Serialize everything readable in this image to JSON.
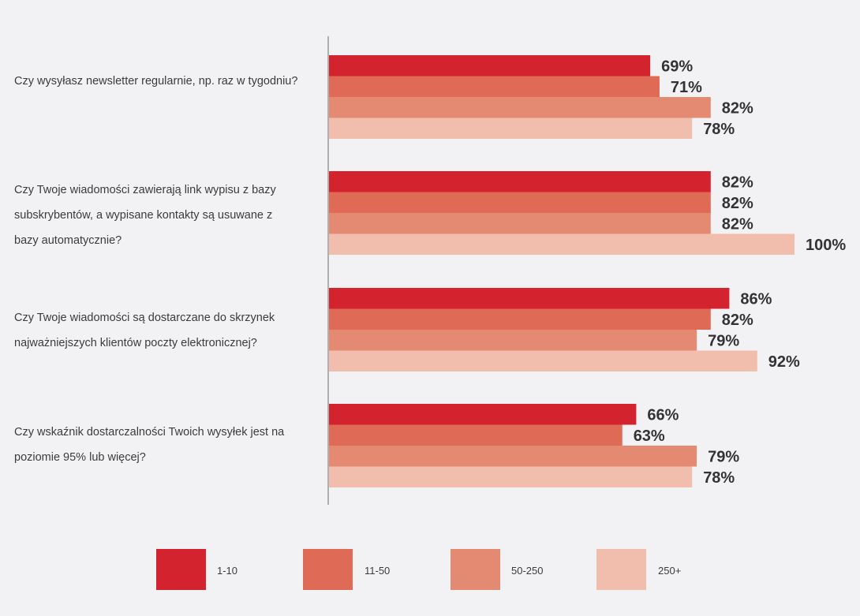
{
  "chart_data": {
    "type": "bar",
    "orientation": "horizontal",
    "title": "",
    "xlabel": "",
    "ylabel": "",
    "xlim": [
      0,
      100
    ],
    "grid": false,
    "legend_position": "bottom",
    "categories": [
      "Czy wysyłasz newsletter regularnie, np. raz w tygodniu?",
      "Czy Twoje wiadomości zawierają link wypisu z bazy subskrybentów, a wypisane kontakty są usuwane z bazy automatycznie?",
      "Czy Twoje wiadomości są dostarczane do skrzynek najważniejszych klientów poczty elektronicznej?",
      "Czy wskaźnik dostarczalności Twoich wysyłek jest na poziomie 95% lub więcej?"
    ],
    "series": [
      {
        "name": "1-10",
        "color": "#d2232e",
        "values": [
          69,
          82,
          86,
          66
        ],
        "labels": [
          "69%",
          "82%",
          "86%",
          "66%"
        ]
      },
      {
        "name": "11-50",
        "color": "#df6a55",
        "values": [
          71,
          82,
          82,
          63
        ],
        "labels": [
          "71%",
          "82%",
          "82%",
          "63%"
        ]
      },
      {
        "name": "50-250",
        "color": "#e58a72",
        "values": [
          82,
          82,
          79,
          79
        ],
        "labels": [
          "82%",
          "82%",
          "79%",
          "79%"
        ]
      },
      {
        "name": "250+",
        "color": "#f1bdad",
        "values": [
          78,
          100,
          92,
          78
        ],
        "labels": [
          "78%",
          "100%",
          "92%",
          "78%"
        ]
      }
    ]
  }
}
